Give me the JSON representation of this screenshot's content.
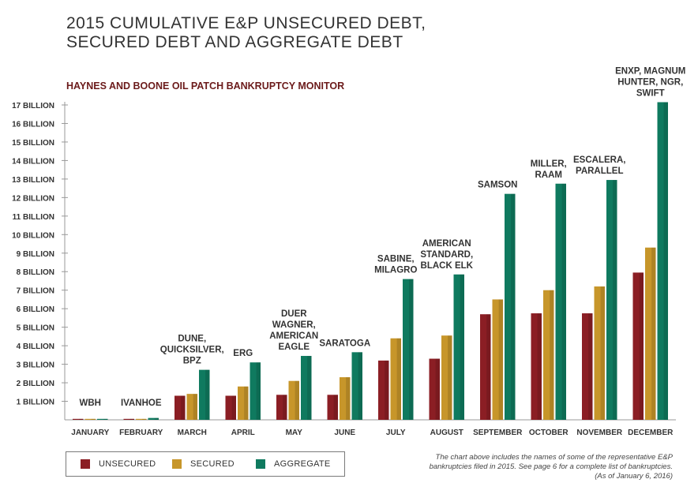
{
  "title_lines": [
    "2015 CUMULATIVE E&P UNSECURED DEBT,",
    "SECURED DEBT AND AGGREGATE DEBT"
  ],
  "subtitle": "HAYNES AND BOONE OIL PATCH BANKRUPTCY MONITOR",
  "colors": {
    "unsecured": "#8b1e24",
    "secured": "#c7962a",
    "aggregate": "#0f7a5f",
    "axis": "#999999",
    "text": "#333333"
  },
  "chart_data": {
    "type": "bar",
    "title": "2015 CUMULATIVE E&P UNSECURED DEBT, SECURED DEBT AND AGGREGATE DEBT",
    "ylabel": "",
    "xlabel": "",
    "ylim": [
      0,
      17
    ],
    "yticks": [
      1,
      2,
      3,
      4,
      5,
      6,
      7,
      8,
      9,
      10,
      11,
      12,
      13,
      14,
      15,
      16,
      17
    ],
    "ytick_labels": [
      "1 BILLION",
      "2 BILLION",
      "3 BILLION",
      "4 BILLION",
      "5 BILLION",
      "6 BILLION",
      "7 BILLION",
      "8 BILLION",
      "9 BILLION",
      "10 BILLION",
      "11 BILLION",
      "12 BILLION",
      "13 BILLION",
      "14 BILLION",
      "15 BILLION",
      "16 BILLION",
      "17 BILLION"
    ],
    "categories": [
      "JANUARY",
      "FEBRUARY",
      "MARCH",
      "APRIL",
      "MAY",
      "JUNE",
      "JULY",
      "AUGUST",
      "SEPTEMBER",
      "OCTOBER",
      "NOVEMBER",
      "DECEMBER"
    ],
    "series": [
      {
        "name": "UNSECURED",
        "color": "#8b1e24",
        "values": [
          0.02,
          0.03,
          1.3,
          1.3,
          1.35,
          1.35,
          3.2,
          3.3,
          5.7,
          5.75,
          5.75,
          7.95
        ]
      },
      {
        "name": "SECURED",
        "color": "#c7962a",
        "values": [
          0.03,
          0.05,
          1.4,
          1.8,
          2.1,
          2.3,
          4.4,
          4.55,
          6.5,
          7.0,
          7.2,
          9.3
        ]
      },
      {
        "name": "AGGREGATE",
        "color": "#0f7a5f",
        "values": [
          0.05,
          0.1,
          2.7,
          3.1,
          3.45,
          3.65,
          7.6,
          7.85,
          12.2,
          12.75,
          12.95,
          17.15
        ]
      }
    ],
    "annotations": [
      [
        "WBH"
      ],
      [
        "IVANHOE"
      ],
      [
        "DUNE,",
        "QUICKSILVER,",
        "BPZ"
      ],
      [
        "ERG"
      ],
      [
        "DUER",
        "WAGNER,",
        "AMERICAN",
        "EAGLE"
      ],
      [
        "SARATOGA"
      ],
      [
        "SABINE,",
        "MILAGRO"
      ],
      [
        "AMERICAN",
        "STANDARD,",
        "BLACK ELK"
      ],
      [
        "SAMSON"
      ],
      [
        "MILLER,",
        "RAAM"
      ],
      [
        "ESCALERA,",
        "PARALLEL"
      ],
      [
        "ENXP, MAGNUM",
        "HUNTER, NGR,",
        "SWIFT"
      ]
    ],
    "grid": false,
    "legend_position": "bottom-left"
  },
  "legend": [
    {
      "label": "UNSECURED",
      "color": "#8b1e24"
    },
    {
      "label": "SECURED",
      "color": "#c7962a"
    },
    {
      "label": "AGGREGATE",
      "color": "#0f7a5f"
    }
  ],
  "note_lines": [
    "The chart above includes the names of some of the representative E&P",
    "bankruptcies filed in 2015. See page 6 for a complete list of bankruptcies.",
    "(As of January 6, 2016)"
  ]
}
